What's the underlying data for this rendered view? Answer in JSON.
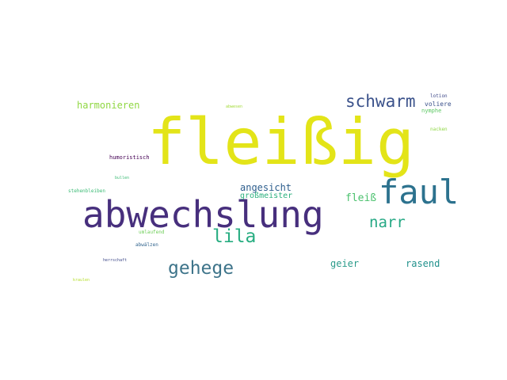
{
  "words": [
    {
      "text": "fleißig",
      "color": "#e3e418"
    },
    {
      "text": "abwechslung",
      "color": "#472f7d"
    },
    {
      "text": "faul",
      "color": "#2c728e"
    },
    {
      "text": "schwarm",
      "color": "#3b528b"
    },
    {
      "text": "lila",
      "color": "#27ad81"
    },
    {
      "text": "gehege",
      "color": "#3e748a"
    },
    {
      "text": "narr",
      "color": "#25a884"
    },
    {
      "text": "harmonieren",
      "color": "#90d743"
    },
    {
      "text": "angesicht",
      "color": "#2d5e8d"
    },
    {
      "text": "großmeister",
      "color": "#2cb17e"
    },
    {
      "text": "fleiß",
      "color": "#4ac16d"
    },
    {
      "text": "geier",
      "color": "#2a9b8a"
    },
    {
      "text": "rasend",
      "color": "#21918c"
    },
    {
      "text": "voliere",
      "color": "#3b528b"
    },
    {
      "text": "nymphe",
      "color": "#5cc863"
    },
    {
      "text": "lotion",
      "color": "#3e4989"
    },
    {
      "text": "nacken",
      "color": "#8fd744"
    },
    {
      "text": "humoristisch",
      "color": "#440154"
    },
    {
      "text": "abwesen",
      "color": "#a2da37"
    },
    {
      "text": "bullen",
      "color": "#3bbb75"
    },
    {
      "text": "stehenbleiben",
      "color": "#3bbb75"
    },
    {
      "text": "umlaufend",
      "color": "#6ece58"
    },
    {
      "text": "abwälzen",
      "color": "#32658e"
    },
    {
      "text": "herrschaft",
      "color": "#3e4989"
    },
    {
      "text": "kraulen",
      "color": "#b5de2b"
    }
  ]
}
